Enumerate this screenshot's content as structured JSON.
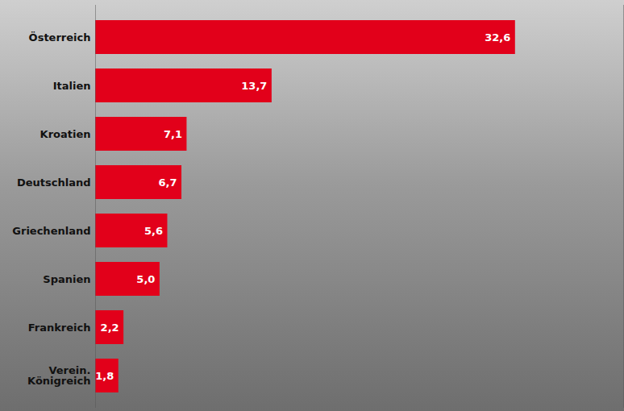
{
  "chart_data": {
    "type": "bar",
    "orientation": "horizontal",
    "categories": [
      "Österreich",
      "Italien",
      "Kroatien",
      "Deutschland",
      "Griechenland",
      "Spanien",
      "Frankreich",
      "Verein.\nKönigreich"
    ],
    "values": [
      32.6,
      13.7,
      7.1,
      6.7,
      5.6,
      5.0,
      2.2,
      1.8
    ],
    "value_labels": [
      "32,6",
      "13,7",
      "7,1",
      "6,7",
      "5,6",
      "5,0",
      "2,2",
      "1,8"
    ],
    "data_labels": true,
    "color": "#e2001a",
    "xlim": [
      0,
      41
    ],
    "xticks": [],
    "grid": false,
    "tick_labels": "y"
  }
}
